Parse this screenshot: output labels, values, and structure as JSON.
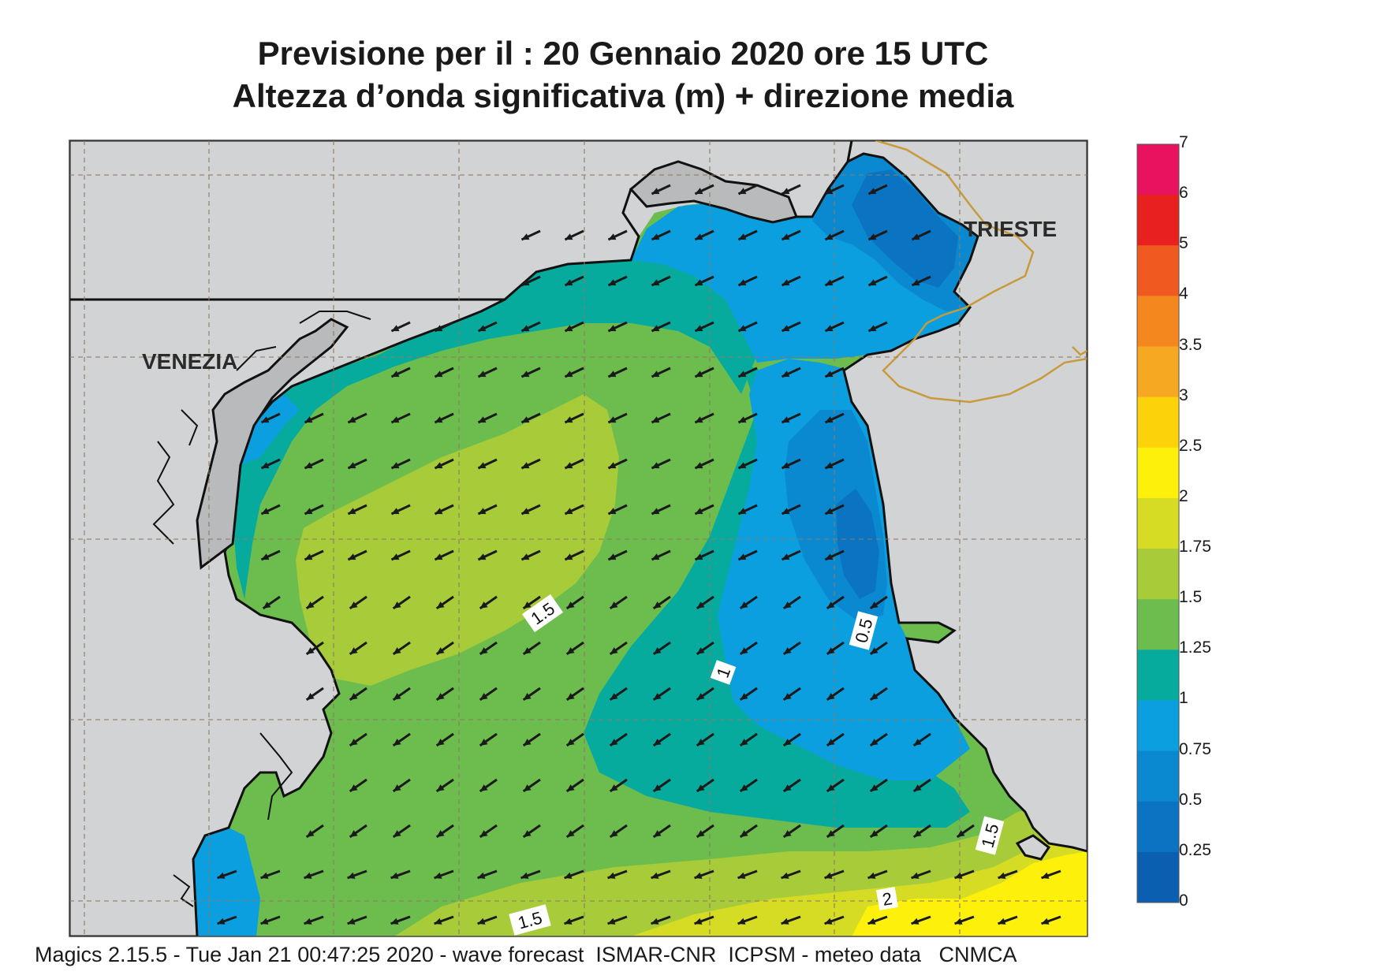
{
  "header": {
    "title_line1": "Previsione per il  :  20  Gennaio  2020   ore 15 UTC",
    "title_line2": "Altezza d’onda significativa (m) + direzione media"
  },
  "footer": {
    "text": "Magics 2.15.5 - Tue Jan 21 00:47:25 2020 - wave forecast  ISMAR-CNR  ICPSM - meteo data   CNMCA"
  },
  "cities": [
    "VENEZIA",
    "TRIESTE"
  ],
  "contour_labels": [
    "1.5",
    "1",
    "0.5",
    "1.5",
    "2",
    "1.5"
  ],
  "colorbar": {
    "labels": [
      "7",
      "6",
      "5",
      "4",
      "3.5",
      "3",
      "2.5",
      "2",
      "1.75",
      "1.5",
      "1.25",
      "1",
      "0.75",
      "0.5",
      "0.25",
      "0"
    ],
    "colors": [
      "#e8125f",
      "#e82020",
      "#f05a20",
      "#f5871f",
      "#f7a822",
      "#fcd20a",
      "#fdf00a",
      "#d6dc24",
      "#a8cb3a",
      "#6dbd4e",
      "#07ab9e",
      "#0c9fe0",
      "#0a89d0",
      "#0a74c2",
      "#0a5fb0"
    ]
  },
  "colors": {
    "land": "#d2d3d4",
    "coast": "#111111",
    "border": "#c79a3c",
    "arrow": "#1a1a1a"
  },
  "wave_direction": "from east-northeast (arrows pointing west-southwest)"
}
